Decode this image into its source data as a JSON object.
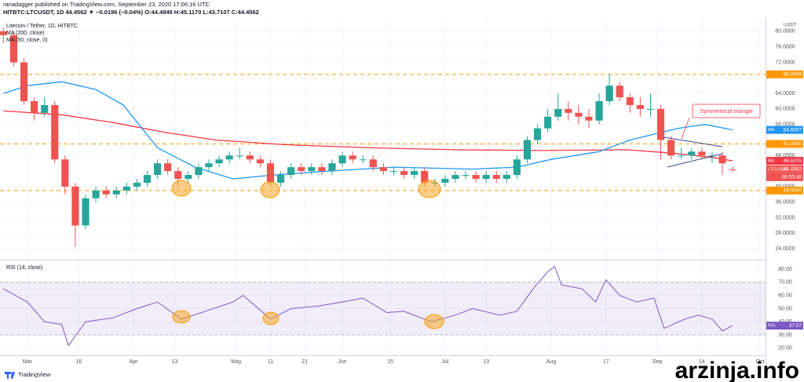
{
  "header": {
    "publisher": "ranadagger published on TradingView.com, September 23, 2020 17:06:16 UTC",
    "quote": "HITBTC:LTCUSDT, 1D  44.4562 ▼ −0.0196 (−0.04%) O:44.4849 H:45.1170 L:43.7107 C:44.4562"
  },
  "chart_data": [
    {
      "type": "candlestick",
      "title": "Litecoin / Tether, 1D, HITBTC",
      "axis_unit": "USDT",
      "up_color": "#26a69a",
      "down_color": "#ef5350",
      "x": [
        -7,
        -4,
        -1,
        2,
        5,
        8,
        11,
        14,
        17,
        20,
        23,
        26,
        29,
        32,
        35,
        38,
        41,
        44,
        47,
        50,
        53,
        56,
        59,
        62,
        65,
        68,
        71,
        74,
        77,
        80,
        83,
        86,
        89,
        92,
        95,
        98,
        101,
        104,
        107,
        110,
        113,
        116,
        119,
        122,
        125,
        128,
        131,
        134,
        137,
        140,
        143,
        146,
        149,
        152,
        155,
        158,
        161,
        164,
        167,
        170,
        173,
        176,
        179,
        182,
        185,
        188,
        191,
        194,
        197,
        200,
        203,
        206
      ],
      "open": [
        80,
        79,
        72,
        62,
        59,
        61,
        47,
        40,
        30,
        37,
        39,
        38,
        39,
        40,
        41,
        43,
        46,
        44,
        42,
        43,
        45,
        46,
        47,
        48,
        48,
        47,
        46,
        41,
        43,
        45,
        44,
        45,
        44,
        46,
        48,
        47,
        47,
        45,
        44,
        44,
        43,
        44,
        41,
        41,
        42,
        43,
        43,
        42,
        43,
        42,
        43,
        47,
        52,
        55,
        58,
        60,
        59,
        58,
        57,
        62,
        66,
        63,
        61,
        60,
        60,
        52,
        48,
        48,
        49,
        48,
        48,
        44.4849
      ],
      "high": [
        81,
        80,
        73,
        63,
        63,
        62,
        48,
        41,
        38,
        40,
        40,
        40,
        41,
        42,
        44,
        47,
        47,
        45,
        44,
        46,
        47,
        48,
        49,
        50,
        49,
        48,
        47,
        44,
        46,
        46,
        46,
        46,
        47,
        49,
        49,
        48,
        48,
        46,
        45,
        45,
        45,
        45,
        42,
        43,
        44,
        44,
        44,
        44,
        44,
        44,
        48,
        53,
        56,
        60,
        64,
        62,
        61,
        60,
        64,
        69,
        67,
        64,
        63,
        64,
        61,
        53,
        50,
        50,
        50,
        49,
        49,
        45.117
      ],
      "low": [
        77,
        71,
        61,
        57,
        58,
        46,
        38,
        24.5,
        29,
        36,
        37,
        37,
        38,
        39,
        40,
        42,
        43,
        40,
        41,
        42,
        44,
        45,
        46,
        47,
        46,
        45,
        40,
        40,
        42,
        43,
        43,
        43,
        43,
        45,
        46,
        46,
        44,
        43,
        43,
        42,
        42,
        40,
        40,
        40,
        41,
        42,
        41,
        41,
        41,
        41,
        42,
        46,
        51,
        54,
        57,
        57,
        56,
        55,
        56,
        61,
        62,
        59,
        58,
        58,
        47,
        47,
        47,
        47,
        47,
        46,
        43,
        43.7107
      ],
      "close": [
        79,
        72,
        62,
        59,
        61,
        47,
        40,
        30,
        37,
        39,
        38,
        39,
        40,
        41,
        43,
        46,
        44,
        42,
        43,
        45,
        46,
        47,
        48,
        48,
        47,
        46,
        41,
        43,
        45,
        44,
        45,
        44,
        46,
        48,
        47,
        47,
        45,
        44,
        44,
        43,
        44,
        41,
        41,
        42,
        43,
        43,
        42,
        43,
        42,
        43,
        47,
        52,
        55,
        58,
        60,
        59,
        58,
        57,
        62,
        66,
        63,
        61,
        60,
        60,
        52,
        48,
        48,
        49,
        48,
        48,
        46,
        44.4562
      ],
      "series": [
        {
          "name": "MA (200, close)",
          "color": "#f23645",
          "x": [
            -7,
            10,
            25,
            40,
            55,
            75,
            100,
            125,
            150,
            175,
            190,
            200,
            206
          ],
          "values": [
            59.5,
            58.5,
            56.5,
            54,
            52,
            50.8,
            50,
            49.5,
            49.3,
            49.5,
            48.5,
            47.5,
            46.6376
          ]
        },
        {
          "name": "MA (50, close, 0)",
          "color": "#2196f3",
          "x": [
            -7,
            0,
            10,
            20,
            28,
            38,
            49,
            60,
            72,
            88,
            107,
            130,
            143,
            153,
            167,
            176,
            190,
            198,
            206
          ],
          "values": [
            64,
            66,
            67,
            65,
            61,
            50,
            45,
            42,
            43,
            44,
            45,
            44.5,
            45,
            47,
            49,
            52,
            55,
            56,
            54.6007
          ]
        }
      ],
      "levels": [
        {
          "value": 68.9008,
          "color": "#ff9800"
        },
        {
          "value": 51,
          "label": "51.0000",
          "color": "#ff9800"
        },
        {
          "value": 39,
          "label": "39.0000",
          "color": "#ff9800"
        }
      ],
      "price_tags": [
        {
          "tag": "MA",
          "value": 54.6007,
          "color": "#2196f3"
        },
        {
          "tag": "MA",
          "value": 46.6376,
          "color": "#f23645"
        },
        {
          "tag": "LTCUSDT",
          "value": 44.4562,
          "color": "#ef5350",
          "countdown": "06:53:48"
        }
      ],
      "annotation": "Symmetrical triangle",
      "xlim": [
        -8,
        215.6
      ],
      "ylim": [
        21.4,
        83
      ],
      "yticks": [
        {
          "value": 80,
          "label": "80.0000"
        },
        {
          "value": 76,
          "label": "76.0000"
        },
        {
          "value": 72,
          "label": "72.0000"
        },
        {
          "value": 64,
          "label": "64.0000"
        },
        {
          "value": 60,
          "label": "60.0000"
        },
        {
          "value": 56,
          "label": "56.0000"
        },
        {
          "value": 48,
          "label": "48.0000"
        },
        {
          "value": 40,
          "label": "40.0000"
        },
        {
          "value": 36,
          "label": "36.0000"
        },
        {
          "value": 32,
          "label": "32.0000"
        },
        {
          "value": 28,
          "label": "28.0000"
        },
        {
          "value": 24,
          "label": "24.0000"
        }
      ],
      "grid": true
    },
    {
      "type": "line",
      "title": "RSI (14, close)",
      "color": "#7e57c2",
      "x": [
        -7,
        0,
        5,
        10,
        12,
        17,
        25,
        32,
        38,
        45,
        52,
        60,
        63,
        71,
        77,
        85,
        92,
        98,
        105,
        110,
        118,
        125,
        130,
        138,
        143,
        148,
        152,
        154,
        156,
        162,
        166,
        169,
        173,
        178,
        183,
        186,
        192,
        196,
        200,
        203,
        206
      ],
      "values": [
        65,
        55,
        40,
        38,
        22,
        40,
        43,
        50,
        55,
        42,
        48,
        55,
        60,
        42,
        50,
        52,
        55,
        58,
        47,
        48,
        40,
        45,
        50,
        45,
        48,
        66,
        78,
        82,
        68,
        65,
        55,
        72,
        60,
        55,
        58,
        35,
        42,
        45,
        42,
        33,
        37.07
      ],
      "band": [
        30,
        70
      ],
      "tag": "RSI",
      "xlim": [
        -8,
        215.6
      ],
      "ylim": [
        14.5,
        86
      ],
      "yticks": [
        {
          "value": 80,
          "label": "80.00"
        },
        {
          "value": 70,
          "label": "70.00"
        },
        {
          "value": 60,
          "label": "60.00"
        },
        {
          "value": 50,
          "label": "50.00"
        },
        {
          "value": 40,
          "label": "40.00"
        },
        {
          "value": 30,
          "label": "30.00"
        },
        {
          "value": 20,
          "label": "20.00"
        }
      ],
      "xticks": [
        {
          "value": 0,
          "label": "Mar"
        },
        {
          "value": 15,
          "label": "16"
        },
        {
          "value": 31,
          "label": "Apr"
        },
        {
          "value": 43,
          "label": "13"
        },
        {
          "value": 61,
          "label": "May"
        },
        {
          "value": 71,
          "label": "11"
        },
        {
          "value": 81,
          "label": "21"
        },
        {
          "value": 92,
          "label": "Jun"
        },
        {
          "value": 106,
          "label": "15"
        },
        {
          "value": 122,
          "label": "Jul"
        },
        {
          "value": 134,
          "label": "13"
        },
        {
          "value": 153,
          "label": "Aug"
        },
        {
          "value": 169,
          "label": "17"
        },
        {
          "value": 184,
          "label": "Sep"
        },
        {
          "value": 197,
          "label": "14"
        },
        {
          "value": 214,
          "label": "Oct"
        }
      ],
      "grid": true
    }
  ],
  "footer": {
    "brand": "TradingView",
    "watermark": "arzinja.info"
  }
}
